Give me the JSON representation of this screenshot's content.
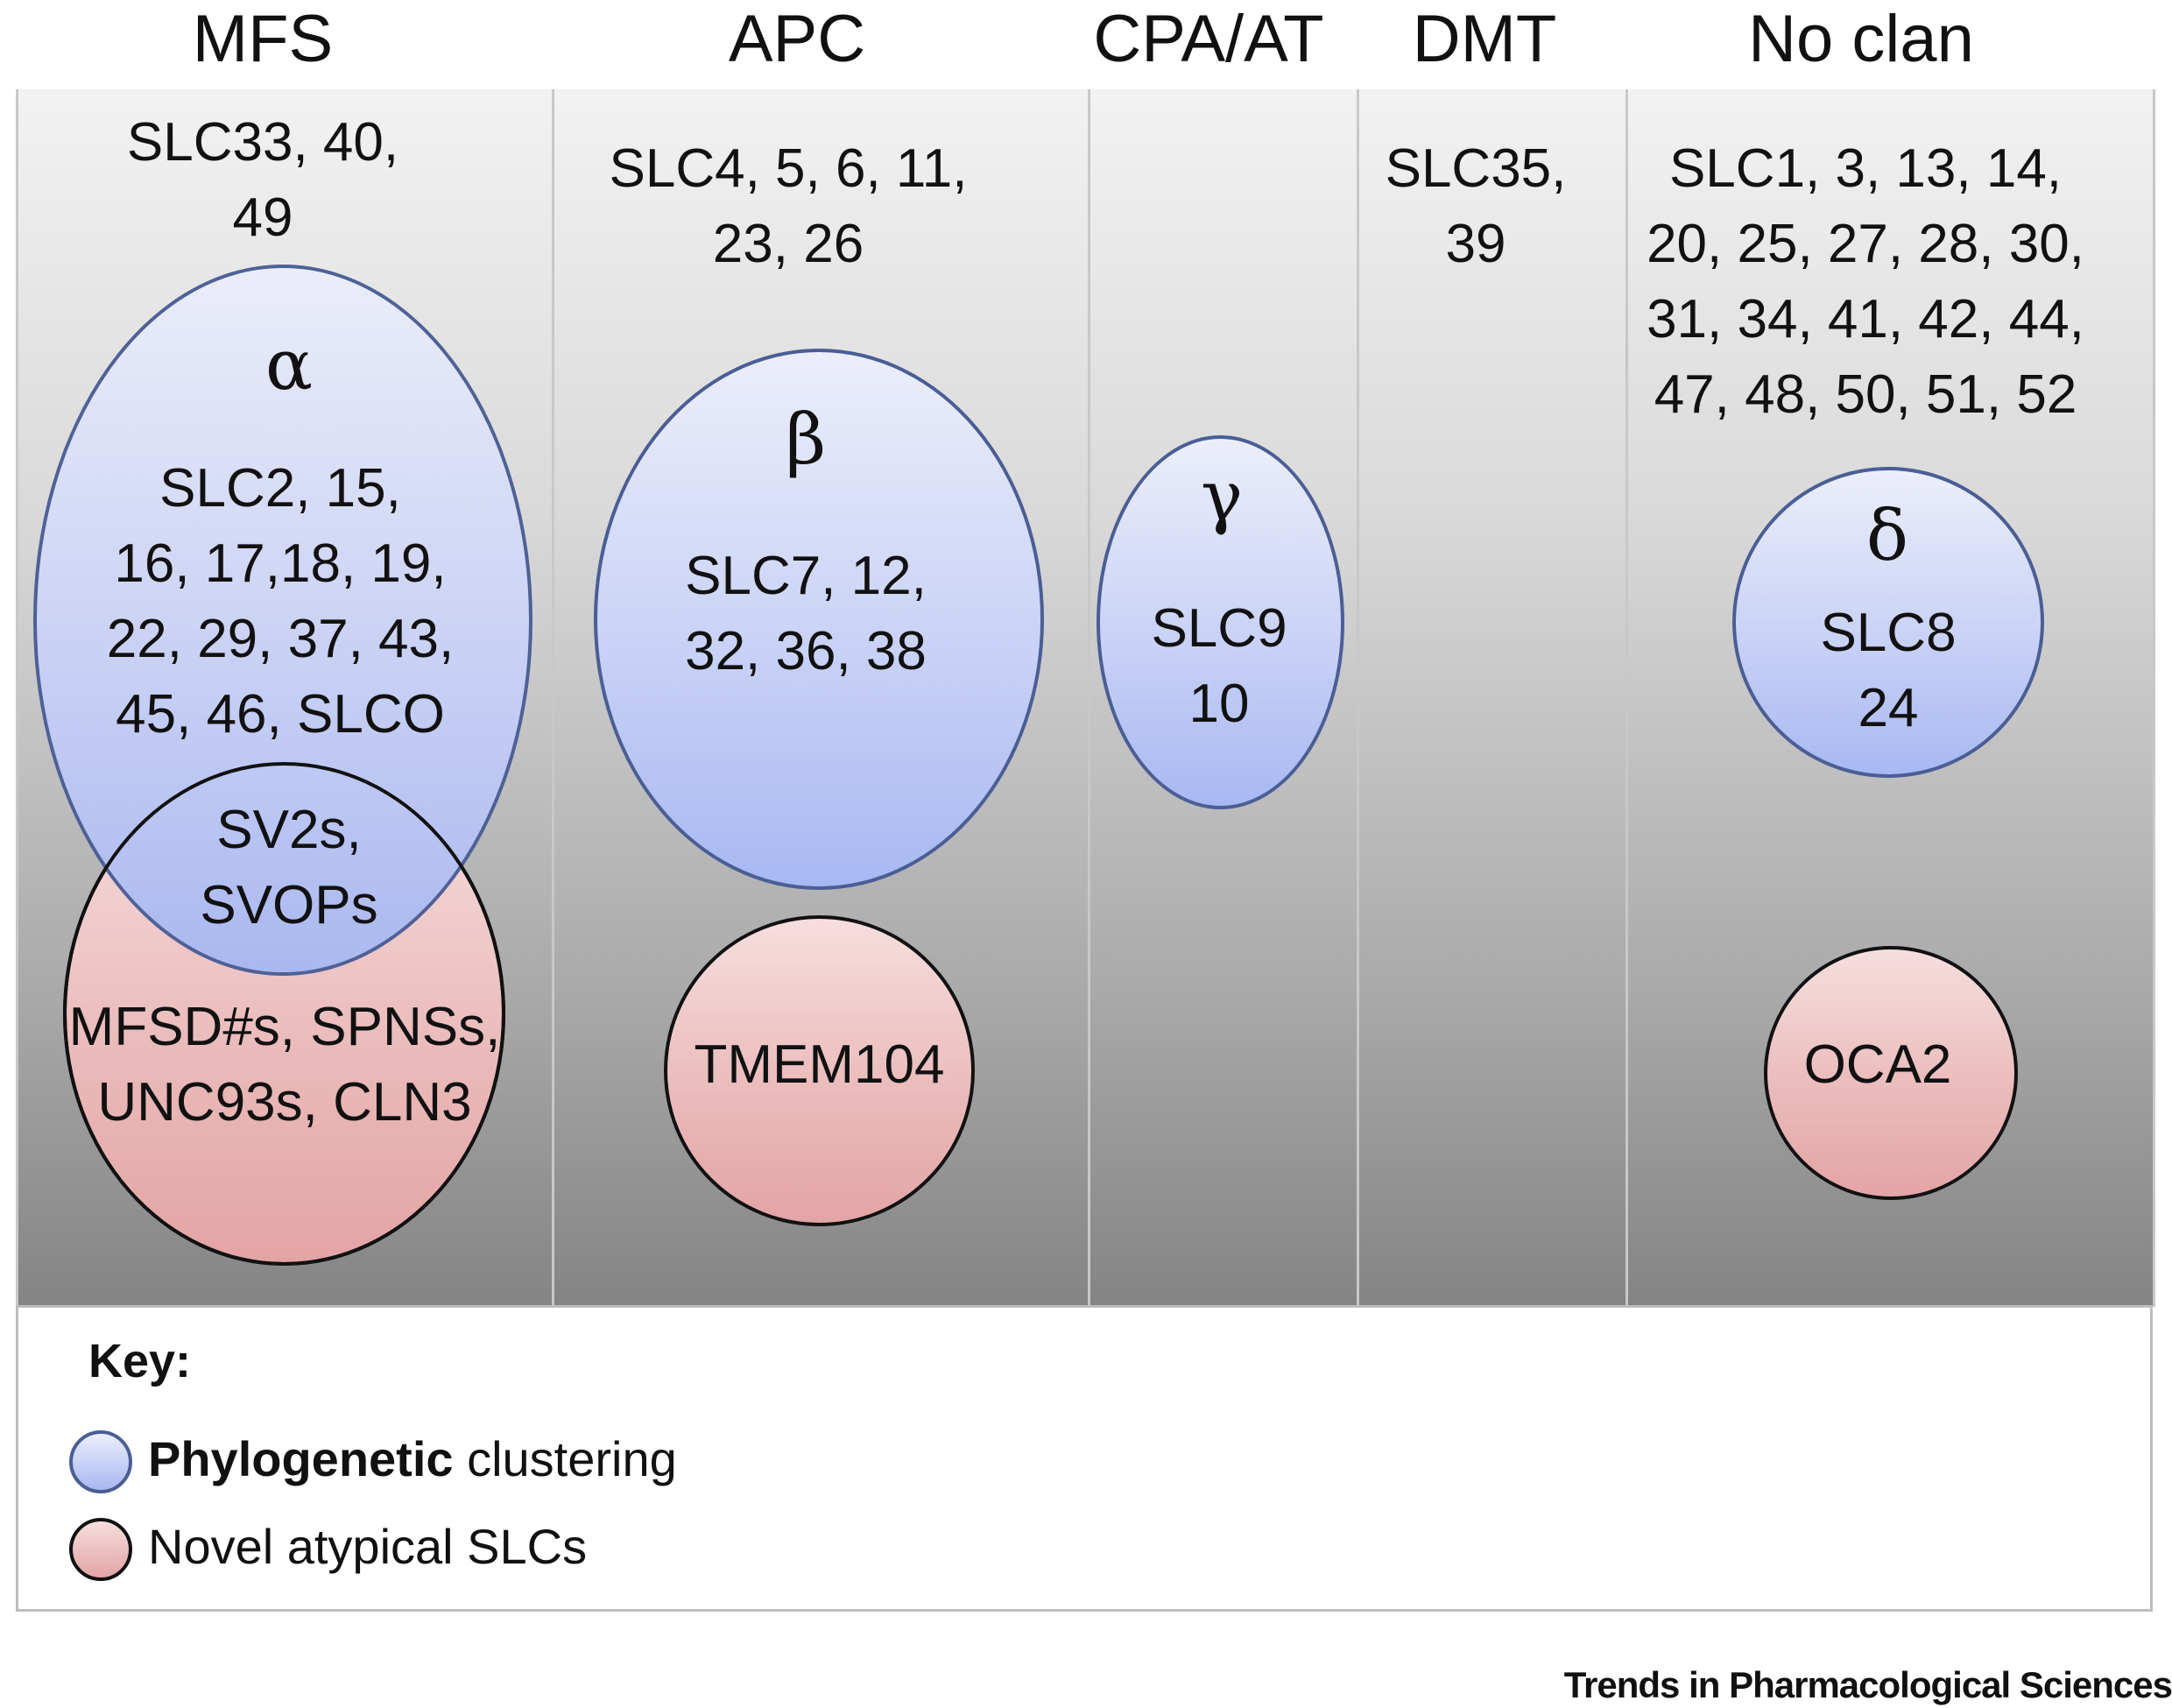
{
  "clans": [
    {
      "title": "MFS",
      "members": "SLC33, 40,\n49"
    },
    {
      "title": "APC",
      "members": "SLC4, 5, 6, 11,\n23, 26"
    },
    {
      "title": "CPA/AT",
      "members": ""
    },
    {
      "title": "DMT",
      "members": "SLC35,\n39"
    },
    {
      "title": "No clan",
      "members": "SLC1, 3, 13, 14,\n20, 25, 27, 28, 30,\n31, 34, 41, 42, 44,\n47, 48, 50, 51, 52"
    }
  ],
  "clusters": {
    "alpha": {
      "symbol": "α",
      "members": "SLC2, 15,\n16, 17,18, 19,\n22, 29, 37, 43,\n45, 46, SLCO"
    },
    "beta": {
      "symbol": "β",
      "members": "SLC7, 12,\n32, 36, 38"
    },
    "gamma": {
      "symbol": "γ",
      "members": "SLC9\n10"
    },
    "delta": {
      "symbol": "δ",
      "members": "SLC8\n24"
    }
  },
  "overlap": "SV2s,\nSVOPs",
  "atypical": {
    "mfs": "MFSD#s, SPNSs,\nUNC93s, CLN3",
    "apc": "TMEM104",
    "noclan": "OCA2"
  },
  "key": {
    "title": "Key:",
    "blue_bold": "Phylogenetic",
    "blue_rest": " clustering",
    "red_label": "Novel atypical SLCs"
  },
  "credit": "Trends in Pharmacological Sciences",
  "colors": {
    "blue_fill": "#c9d2f6",
    "blue_border": "#4a5e95",
    "red_fill": "#eab9b9",
    "red_border": "#111111"
  }
}
